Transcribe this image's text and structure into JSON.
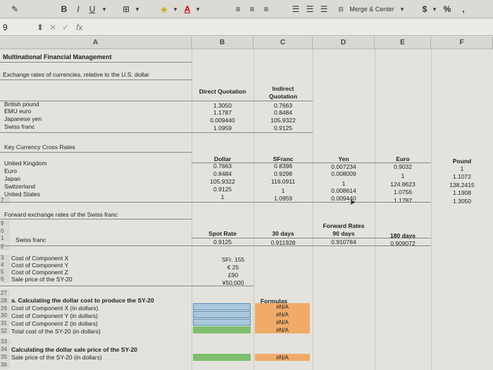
{
  "ribbon": {
    "bold": "B",
    "italic": "I",
    "underline": "U",
    "merge_center": "Merge & Center",
    "currency": "$",
    "percent": "%",
    "comma": ","
  },
  "formula_bar": {
    "cell_ref": "9",
    "fx": "fx",
    "content": ""
  },
  "columns": [
    "A",
    "B",
    "C",
    "D",
    "E",
    "F"
  ],
  "sheet": {
    "title": "Multinational Financial Management",
    "subtitle": "Exchange rates of currencies, relative to the U.S. dollar",
    "direct_quotation_header": "Direct Quotation",
    "indirect_quotation_header_1": "Indirect",
    "indirect_quotation_header_2": "Quotation",
    "rates": [
      {
        "currency": "British pound",
        "direct": "1.3050",
        "indirect": "0.7663"
      },
      {
        "currency": "EMU euro",
        "direct": "1.1787",
        "indirect": "0.8484"
      },
      {
        "currency": "Japanese yen",
        "direct": "0.009440",
        "indirect": "105.9322"
      },
      {
        "currency": "Swiss franc",
        "direct": "1.0959",
        "indirect": "0.9125"
      }
    ],
    "cross_rates_title": "Key Currency Cross Rates",
    "cross_headers": [
      "Dollar",
      "SFranc",
      "Yen",
      "Euro",
      "Pound"
    ],
    "cross_rows": [
      {
        "country": "United Kingdom",
        "dollar": "0.7663",
        "sfranc": "0.8398",
        "yen": "0.007234",
        "euro": "0.9032",
        "pound": "1"
      },
      {
        "country": "Euro",
        "dollar": "0.8484",
        "sfranc": "0.9298",
        "yen": "0.008009",
        "euro": "1",
        "pound": "1.1072"
      },
      {
        "country": "Japan",
        "dollar": "105.9322",
        "sfranc": "116.0911",
        "yen": "1",
        "euro": "124.8623",
        "pound": "138.2415"
      },
      {
        "country": "Switzerland",
        "dollar": "0.9125",
        "sfranc": "1",
        "yen": "0.008614",
        "euro": "1.0756",
        "pound": "1.1908"
      },
      {
        "country": "United States",
        "dollar": "1",
        "sfranc": "1.0959",
        "yen": "0.009440",
        "euro": "1.1787",
        "pound": "1.3050"
      }
    ],
    "forward_title": "Forward exchange rates of the Swiss franc",
    "forward_rates_header": "Forward Rates",
    "spot_rate_header": "Spot Rate",
    "days30_header": "30 days",
    "days90_header": "90 days",
    "days180_header": "180 days",
    "swiss_franc_label": "Swiss franc",
    "spot_rate": "0.9125",
    "days30": "0.911928",
    "days90": "0.910784",
    "days180": "0.909072",
    "costs": [
      {
        "label": "Cost of Component X",
        "value": "SFr. 155"
      },
      {
        "label": "Cost of Component Y",
        "value": "€ 25"
      },
      {
        "label": "Cost of Component Z",
        "value": "£90"
      },
      {
        "label": "Sale price of the SY-20",
        "value": "¥50,000"
      }
    ],
    "section_a_title": "a.  Calculating the dollar cost to produce the SY-20",
    "formulas_header": "Formulas",
    "dollar_costs": [
      {
        "label": "Cost of Component X (in dollars)",
        "formula": "#N/A"
      },
      {
        "label": "Cost of Component Y (in dollars)",
        "formula": "#N/A"
      },
      {
        "label": "Cost of Component Z (in dollars)",
        "formula": "#N/A"
      },
      {
        "label": "Total cost of the SY-20 (in dollars)",
        "formula": "#N/A"
      }
    ],
    "section_b_title": "Calculating the dollar sale price of the SY-20",
    "sale_price_label": "Sale price of the SY-20 (in dollars)",
    "sale_price_formula": "#N/A"
  },
  "row_numbers": [
    "",
    "",
    "",
    "",
    "",
    "",
    "",
    "",
    "",
    "",
    "",
    "",
    "",
    "",
    "",
    "",
    "",
    "",
    "",
    "7",
    "",
    "9",
    "0",
    "1",
    "2",
    "3",
    "4",
    "5",
    "6",
    "27",
    "28",
    "29",
    "30",
    "31",
    "32",
    "33",
    "34",
    "35",
    "36"
  ]
}
